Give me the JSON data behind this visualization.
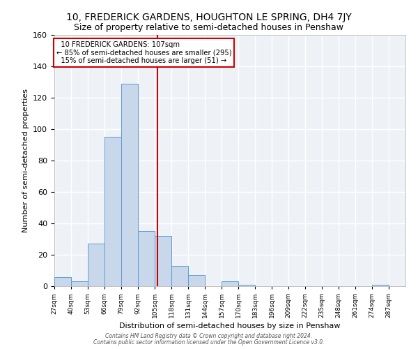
{
  "title": "10, FREDERICK GARDENS, HOUGHTON LE SPRING, DH4 7JY",
  "subtitle": "Size of property relative to semi-detached houses in Penshaw",
  "xlabel": "Distribution of semi-detached houses by size in Penshaw",
  "ylabel": "Number of semi-detached properties",
  "footer_line1": "Contains HM Land Registry data © Crown copyright and database right 2024.",
  "footer_line2": "Contains public sector information licensed under the Open Government Licence v3.0.",
  "bins": [
    27,
    40,
    53,
    66,
    79,
    92,
    105,
    118,
    131,
    144,
    157,
    170,
    183,
    196,
    209,
    222,
    235,
    248,
    261,
    274,
    287
  ],
  "counts": [
    6,
    3,
    27,
    95,
    129,
    35,
    32,
    13,
    7,
    0,
    3,
    1,
    0,
    0,
    0,
    0,
    0,
    0,
    0,
    1
  ],
  "bar_color": "#c8d8ea",
  "bar_edge_color": "#5b9bd5",
  "property_size": 107,
  "property_label": "10 FREDERICK GARDENS: 107sqm",
  "pct_smaller": 85,
  "pct_smaller_count": 295,
  "pct_larger": 15,
  "pct_larger_count": 51,
  "vline_color": "#cc0000",
  "annotation_box_edge": "#cc0000",
  "ylim": [
    0,
    160
  ],
  "bg_color": "#eef2f7",
  "grid_color": "#ffffff",
  "title_fontsize": 10,
  "subtitle_fontsize": 9,
  "tick_labels": [
    "27sqm",
    "40sqm",
    "53sqm",
    "66sqm",
    "79sqm",
    "92sqm",
    "105sqm",
    "118sqm",
    "131sqm",
    "144sqm",
    "157sqm",
    "170sqm",
    "183sqm",
    "196sqm",
    "209sqm",
    "222sqm",
    "235sqm",
    "248sqm",
    "261sqm",
    "274sqm",
    "287sqm"
  ]
}
